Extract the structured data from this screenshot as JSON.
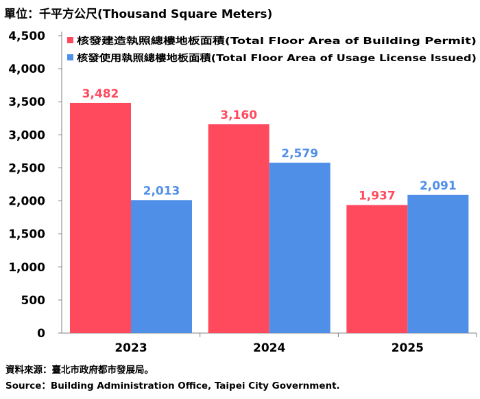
{
  "chart_data": {
    "type": "bar",
    "unit_label": "單位：千平方公尺(Thousand Square Meters)",
    "categories": [
      "2023",
      "2024",
      "2025"
    ],
    "series": [
      {
        "name": "核發建造執照總樓地板面積(Total Floor Area of Building Permit)",
        "values": [
          3482,
          3160,
          1937
        ],
        "color": "#ff4a5e"
      },
      {
        "name": "核發使用執照總樓地板面積(Total Floor Area of Usage License Issued)",
        "values": [
          2013,
          2579,
          2091
        ],
        "color": "#4f8fe8"
      }
    ],
    "ylim": [
      0,
      4500
    ],
    "yticks": [
      "0",
      "500",
      "1,000",
      "1,500",
      "2,000",
      "2,500",
      "3,000",
      "3,500",
      "4,000",
      "4,500"
    ],
    "ytick_values": [
      0,
      500,
      1000,
      1500,
      2000,
      2500,
      3000,
      3500,
      4000,
      4500
    ],
    "data_labels": [
      [
        "3,482",
        "3,160",
        "1,937"
      ],
      [
        "2,013",
        "2,579",
        "2,091"
      ]
    ],
    "legend_position": "top-right",
    "grid": false
  },
  "footer": {
    "source_zh": "資料來源：臺北市政府都市發展局。",
    "source_en": "Source：Building Administration Office, Taipei City Government."
  }
}
